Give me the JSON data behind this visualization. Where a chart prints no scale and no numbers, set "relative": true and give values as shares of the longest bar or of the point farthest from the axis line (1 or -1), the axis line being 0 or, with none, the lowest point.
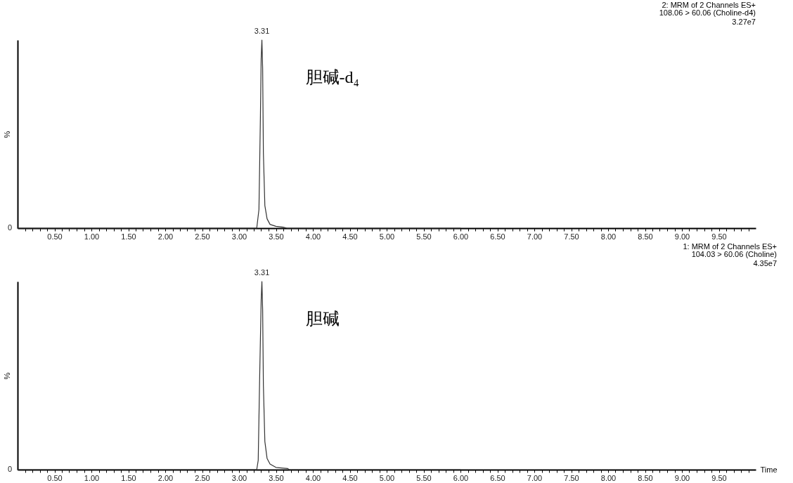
{
  "chart_data": [
    {
      "type": "line",
      "title": "2: MRM of 2 Channels ES+",
      "subtitle": [
        "108.06 > 60.06 (Choline-d4)",
        "3.27e7"
      ],
      "ylabel": "%",
      "relative": true,
      "xlim": [
        0,
        10
      ],
      "xticks": [
        {
          "value": 0.1,
          "label": null
        },
        {
          "value": 0.2,
          "label": null
        },
        {
          "value": 0.3,
          "label": null
        },
        {
          "value": 0.4,
          "label": null
        },
        {
          "value": 0.5,
          "label": "0.50"
        },
        {
          "value": 0.6,
          "label": null
        },
        {
          "value": 0.7,
          "label": null
        },
        {
          "value": 0.8,
          "label": null
        },
        {
          "value": 0.9,
          "label": null
        },
        {
          "value": 1,
          "label": "1.00"
        },
        {
          "value": 1.1,
          "label": null
        },
        {
          "value": 1.2,
          "label": null
        },
        {
          "value": 1.3,
          "label": null
        },
        {
          "value": 1.4,
          "label": null
        },
        {
          "value": 1.5,
          "label": "1.50"
        },
        {
          "value": 1.6,
          "label": null
        },
        {
          "value": 1.7,
          "label": null
        },
        {
          "value": 1.8,
          "label": null
        },
        {
          "value": 1.9,
          "label": null
        },
        {
          "value": 2,
          "label": "2.00"
        },
        {
          "value": 2.1,
          "label": null
        },
        {
          "value": 2.2,
          "label": null
        },
        {
          "value": 2.3,
          "label": null
        },
        {
          "value": 2.4,
          "label": null
        },
        {
          "value": 2.5,
          "label": "2.50"
        },
        {
          "value": 2.6,
          "label": null
        },
        {
          "value": 2.7,
          "label": null
        },
        {
          "value": 2.8,
          "label": null
        },
        {
          "value": 2.9,
          "label": null
        },
        {
          "value": 3,
          "label": "3.00"
        },
        {
          "value": 3.1,
          "label": null
        },
        {
          "value": 3.2,
          "label": null
        },
        {
          "value": 3.3,
          "label": null
        },
        {
          "value": 3.4,
          "label": null
        },
        {
          "value": 3.5,
          "label": "3.50"
        },
        {
          "value": 3.6,
          "label": null
        },
        {
          "value": 3.7,
          "label": null
        },
        {
          "value": 3.8,
          "label": null
        },
        {
          "value": 3.9,
          "label": null
        },
        {
          "value": 4,
          "label": "4.00"
        },
        {
          "value": 4.1,
          "label": null
        },
        {
          "value": 4.2,
          "label": null
        },
        {
          "value": 4.3,
          "label": null
        },
        {
          "value": 4.4,
          "label": null
        },
        {
          "value": 4.5,
          "label": "4.50"
        },
        {
          "value": 4.6,
          "label": null
        },
        {
          "value": 4.7,
          "label": null
        },
        {
          "value": 4.8,
          "label": null
        },
        {
          "value": 4.9,
          "label": null
        },
        {
          "value": 5,
          "label": "5.00"
        },
        {
          "value": 5.1,
          "label": null
        },
        {
          "value": 5.2,
          "label": null
        },
        {
          "value": 5.3,
          "label": null
        },
        {
          "value": 5.4,
          "label": null
        },
        {
          "value": 5.5,
          "label": "5.50"
        },
        {
          "value": 5.6,
          "label": null
        },
        {
          "value": 5.7,
          "label": null
        },
        {
          "value": 5.8,
          "label": null
        },
        {
          "value": 5.9,
          "label": null
        },
        {
          "value": 6,
          "label": "6.00"
        },
        {
          "value": 6.1,
          "label": null
        },
        {
          "value": 6.2,
          "label": null
        },
        {
          "value": 6.3,
          "label": null
        },
        {
          "value": 6.4,
          "label": null
        },
        {
          "value": 6.5,
          "label": "6.50"
        },
        {
          "value": 6.6,
          "label": null
        },
        {
          "value": 6.7,
          "label": null
        },
        {
          "value": 6.8,
          "label": null
        },
        {
          "value": 6.9,
          "label": null
        },
        {
          "value": 7,
          "label": "7.00"
        },
        {
          "value": 7.1,
          "label": null
        },
        {
          "value": 7.2,
          "label": null
        },
        {
          "value": 7.3,
          "label": null
        },
        {
          "value": 7.4,
          "label": null
        },
        {
          "value": 7.5,
          "label": "7.50"
        },
        {
          "value": 7.6,
          "label": null
        },
        {
          "value": 7.7,
          "label": null
        },
        {
          "value": 7.8,
          "label": null
        },
        {
          "value": 7.9,
          "label": null
        },
        {
          "value": 8,
          "label": "8.00"
        },
        {
          "value": 8.1,
          "label": null
        },
        {
          "value": 8.2,
          "label": null
        },
        {
          "value": 8.3,
          "label": null
        },
        {
          "value": 8.4,
          "label": null
        },
        {
          "value": 8.5,
          "label": "8.50"
        },
        {
          "value": 8.6,
          "label": null
        },
        {
          "value": 8.7,
          "label": null
        },
        {
          "value": 8.8,
          "label": null
        },
        {
          "value": 8.9,
          "label": null
        },
        {
          "value": 9,
          "label": "9.00"
        },
        {
          "value": 9.1,
          "label": null
        },
        {
          "value": 9.2,
          "label": null
        },
        {
          "value": 9.3,
          "label": null
        },
        {
          "value": 9.4,
          "label": null
        },
        {
          "value": 9.5,
          "label": "9.50"
        },
        {
          "value": 9.6,
          "label": null
        },
        {
          "value": 9.7,
          "label": null
        },
        {
          "value": 9.8,
          "label": null
        },
        {
          "value": 9.9,
          "label": null
        }
      ],
      "series": [
        {
          "color": "#333333",
          "x": [
            0,
            3.24,
            3.27,
            3.29,
            3.3,
            3.31,
            3.32,
            3.33,
            3.35,
            3.38,
            3.42,
            3.5,
            3.6,
            3.65,
            6.0
          ],
          "values": [
            0,
            0,
            0.1,
            0.6,
            0.9,
            1,
            0.85,
            0.4,
            0.12,
            0.05,
            0.02,
            0.01,
            0.005,
            0,
            0
          ]
        }
      ],
      "annotations": [
        {
          "text": "3.31",
          "x": 3.31,
          "y": 1
        },
        "0",
        "胆碱-d₄"
      ]
    },
    {
      "type": "line",
      "title": "1: MRM of 2 Channels ES+",
      "subtitle": [
        "104.03 > 60.06 (Choline)",
        "4.35e7"
      ],
      "ylabel": "%",
      "xlabel": "Time",
      "relative": true,
      "xlim": [
        0,
        10
      ],
      "xticks": [
        {
          "value": 0.1,
          "label": null
        },
        {
          "value": 0.2,
          "label": null
        },
        {
          "value": 0.3,
          "label": null
        },
        {
          "value": 0.4,
          "label": null
        },
        {
          "value": 0.5,
          "label": "0.50"
        },
        {
          "value": 0.6,
          "label": null
        },
        {
          "value": 0.7,
          "label": null
        },
        {
          "value": 0.8,
          "label": null
        },
        {
          "value": 0.9,
          "label": null
        },
        {
          "value": 1,
          "label": "1.00"
        },
        {
          "value": 1.1,
          "label": null
        },
        {
          "value": 1.2,
          "label": null
        },
        {
          "value": 1.3,
          "label": null
        },
        {
          "value": 1.4,
          "label": null
        },
        {
          "value": 1.5,
          "label": "1.50"
        },
        {
          "value": 1.6,
          "label": null
        },
        {
          "value": 1.7,
          "label": null
        },
        {
          "value": 1.8,
          "label": null
        },
        {
          "value": 1.9,
          "label": null
        },
        {
          "value": 2,
          "label": "2.00"
        },
        {
          "value": 2.1,
          "label": null
        },
        {
          "value": 2.2,
          "label": null
        },
        {
          "value": 2.3,
          "label": null
        },
        {
          "value": 2.4,
          "label": null
        },
        {
          "value": 2.5,
          "label": "2.50"
        },
        {
          "value": 2.6,
          "label": null
        },
        {
          "value": 2.7,
          "label": null
        },
        {
          "value": 2.8,
          "label": null
        },
        {
          "value": 2.9,
          "label": null
        },
        {
          "value": 3,
          "label": "3.00"
        },
        {
          "value": 3.1,
          "label": null
        },
        {
          "value": 3.2,
          "label": null
        },
        {
          "value": 3.3,
          "label": null
        },
        {
          "value": 3.4,
          "label": null
        },
        {
          "value": 3.5,
          "label": "3.50"
        },
        {
          "value": 3.6,
          "label": null
        },
        {
          "value": 3.7,
          "label": null
        },
        {
          "value": 3.8,
          "label": null
        },
        {
          "value": 3.9,
          "label": null
        },
        {
          "value": 4,
          "label": "4.00"
        },
        {
          "value": 4.1,
          "label": null
        },
        {
          "value": 4.2,
          "label": null
        },
        {
          "value": 4.3,
          "label": null
        },
        {
          "value": 4.4,
          "label": null
        },
        {
          "value": 4.5,
          "label": "4.50"
        },
        {
          "value": 4.6,
          "label": null
        },
        {
          "value": 4.7,
          "label": null
        },
        {
          "value": 4.8,
          "label": null
        },
        {
          "value": 4.9,
          "label": null
        },
        {
          "value": 5,
          "label": "5.00"
        },
        {
          "value": 5.1,
          "label": null
        },
        {
          "value": 5.2,
          "label": null
        },
        {
          "value": 5.3,
          "label": null
        },
        {
          "value": 5.4,
          "label": null
        },
        {
          "value": 5.5,
          "label": "5.50"
        },
        {
          "value": 5.6,
          "label": null
        },
        {
          "value": 5.7,
          "label": null
        },
        {
          "value": 5.8,
          "label": null
        },
        {
          "value": 5.9,
          "label": null
        },
        {
          "value": 6,
          "label": "6.00"
        },
        {
          "value": 6.1,
          "label": null
        },
        {
          "value": 6.2,
          "label": null
        },
        {
          "value": 6.3,
          "label": null
        },
        {
          "value": 6.4,
          "label": null
        },
        {
          "value": 6.5,
          "label": "6.50"
        },
        {
          "value": 6.6,
          "label": null
        },
        {
          "value": 6.7,
          "label": null
        },
        {
          "value": 6.8,
          "label": null
        },
        {
          "value": 6.9,
          "label": null
        },
        {
          "value": 7,
          "label": "7.00"
        },
        {
          "value": 7.1,
          "label": null
        },
        {
          "value": 7.2,
          "label": null
        },
        {
          "value": 7.3,
          "label": null
        },
        {
          "value": 7.4,
          "label": null
        },
        {
          "value": 7.5,
          "label": "7.50"
        },
        {
          "value": 7.6,
          "label": null
        },
        {
          "value": 7.7,
          "label": null
        },
        {
          "value": 7.8,
          "label": null
        },
        {
          "value": 7.9,
          "label": null
        },
        {
          "value": 8,
          "label": "8.00"
        },
        {
          "value": 8.1,
          "label": null
        },
        {
          "value": 8.2,
          "label": null
        },
        {
          "value": 8.3,
          "label": null
        },
        {
          "value": 8.4,
          "label": null
        },
        {
          "value": 8.5,
          "label": "8.50"
        },
        {
          "value": 8.6,
          "label": null
        },
        {
          "value": 8.7,
          "label": null
        },
        {
          "value": 8.8,
          "label": null
        },
        {
          "value": 8.9,
          "label": null
        },
        {
          "value": 9,
          "label": "9.00"
        },
        {
          "value": 9.1,
          "label": null
        },
        {
          "value": 9.2,
          "label": null
        },
        {
          "value": 9.3,
          "label": null
        },
        {
          "value": 9.4,
          "label": null
        },
        {
          "value": 9.5,
          "label": "9.50"
        },
        {
          "value": 9.6,
          "label": null
        },
        {
          "value": 9.7,
          "label": null
        },
        {
          "value": 9.8,
          "label": null
        },
        {
          "value": 9.9,
          "label": null
        }
      ],
      "series": [
        {
          "color": "#333333",
          "x": [
            0,
            3.24,
            3.26,
            3.28,
            3.3,
            3.31,
            3.32,
            3.33,
            3.35,
            3.38,
            3.42,
            3.5,
            3.6,
            3.66,
            3.68,
            6.0
          ],
          "values": [
            0,
            0,
            0.05,
            0.5,
            0.9,
            1,
            0.85,
            0.45,
            0.15,
            0.06,
            0.03,
            0.012,
            0.008,
            0.006,
            0,
            0
          ]
        }
      ],
      "annotations": [
        {
          "text": "3.31",
          "x": 3.31,
          "y": 1
        },
        "0",
        "胆碱"
      ]
    }
  ]
}
